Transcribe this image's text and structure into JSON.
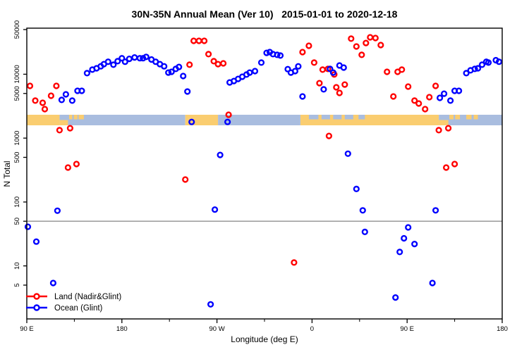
{
  "title": "30N-35N Annual Mean (Ver 10)   2015-01-01 to 2020-12-18",
  "axes": {
    "x_label": "Longitude (deg E)",
    "y_label": "N Total"
  },
  "legend": [
    {
      "label": "Land (Nadir&Glint)",
      "color": "#FF0000"
    },
    {
      "label": "Ocean (Glint)",
      "color": "#0000FF"
    }
  ],
  "colors": {
    "land_series": "#FF0000",
    "ocean_series": "#0000FF",
    "band_land": "#FACD70",
    "band_ocean": "#A9BDDF",
    "ref_line": "#999999",
    "frame": "#000000"
  },
  "chart_data": {
    "type": "scatter",
    "title": "30N-35N Annual Mean (Ver 10)   2015-01-01 to 2020-12-18",
    "xlabel": "Longitude (deg E)",
    "ylabel": "N Total",
    "x_axis": {
      "range_deg": [
        90,
        540
      ],
      "major_ticks": [
        {
          "deg": 90,
          "label": "90 E"
        },
        {
          "deg": 180,
          "label": "180"
        },
        {
          "deg": 270,
          "label": "90 W"
        },
        {
          "deg": 360,
          "label": "0"
        },
        {
          "deg": 450,
          "label": "90 E"
        },
        {
          "deg": 540,
          "label": "180"
        }
      ],
      "minor_ticks": [
        135,
        225,
        315,
        405,
        495
      ]
    },
    "y_axis": {
      "scale": "log",
      "range": [
        1.5,
        50000
      ],
      "ticks": [
        5,
        10,
        50,
        100,
        500,
        1000,
        5000,
        10000,
        50000
      ]
    },
    "reference_line_y": 50,
    "map_band": {
      "value_top": 2400,
      "value_bottom": 1600,
      "segments": [
        {
          "from": 90,
          "to": 121,
          "type": "land"
        },
        {
          "from": 121,
          "to": 240,
          "type": "ocean"
        },
        {
          "from": 240,
          "to": 271,
          "type": "land"
        },
        {
          "from": 271,
          "to": 349,
          "type": "ocean"
        },
        {
          "from": 349,
          "to": 480,
          "type": "land"
        },
        {
          "from": 480,
          "to": 540,
          "type": "ocean"
        }
      ],
      "patches": [
        {
          "from": 121,
          "to": 129,
          "pos": "bottom",
          "type": "land"
        },
        {
          "from": 130,
          "to": 133,
          "pos": "top",
          "type": "land"
        },
        {
          "from": 134.5,
          "to": 138,
          "pos": "top",
          "type": "land"
        },
        {
          "from": 139,
          "to": 144,
          "pos": "top",
          "type": "land"
        },
        {
          "from": 357,
          "to": 366,
          "pos": "top",
          "type": "ocean"
        },
        {
          "from": 369,
          "to": 377,
          "pos": "top",
          "type": "ocean"
        },
        {
          "from": 380,
          "to": 388,
          "pos": "top",
          "type": "ocean"
        },
        {
          "from": 391,
          "to": 399,
          "pos": "top",
          "type": "ocean"
        },
        {
          "from": 404,
          "to": 410,
          "pos": "top",
          "type": "ocean"
        },
        {
          "from": 480,
          "to": 489,
          "pos": "bottom",
          "type": "land"
        },
        {
          "from": 490,
          "to": 494,
          "pos": "top",
          "type": "land"
        },
        {
          "from": 495.5,
          "to": 500,
          "pos": "top",
          "type": "land"
        },
        {
          "from": 506,
          "to": 511,
          "pos": "top",
          "type": "land"
        },
        {
          "from": 513,
          "to": 517,
          "pos": "top",
          "type": "land"
        }
      ]
    },
    "series": [
      {
        "name": "Land (Nadir&Glint)",
        "color": "#FF0000",
        "points": [
          [
            93,
            6570
          ],
          [
            98,
            3860
          ],
          [
            105,
            3570
          ],
          [
            107,
            2840
          ],
          [
            113,
            4600
          ],
          [
            118,
            6570
          ],
          [
            121,
            1330
          ],
          [
            131,
            1430
          ],
          [
            129,
            346
          ],
          [
            137,
            393
          ],
          [
            244,
            14100
          ],
          [
            248,
            33300
          ],
          [
            253,
            33300
          ],
          [
            258,
            33300
          ],
          [
            262,
            20600
          ],
          [
            267,
            16000
          ],
          [
            271,
            14400
          ],
          [
            276,
            14800
          ],
          [
            281,
            2320
          ],
          [
            240,
            225
          ],
          [
            351,
            22200
          ],
          [
            357,
            27900
          ],
          [
            362,
            15200
          ],
          [
            367,
            7260
          ],
          [
            370,
            11800
          ],
          [
            375,
            12100
          ],
          [
            376,
            1080
          ],
          [
            381,
            9900
          ],
          [
            383,
            6240
          ],
          [
            386,
            5100
          ],
          [
            391,
            6900
          ],
          [
            397,
            36000
          ],
          [
            402,
            27200
          ],
          [
            407,
            20100
          ],
          [
            411,
            30800
          ],
          [
            415,
            37800
          ],
          [
            420,
            36900
          ],
          [
            425,
            28600
          ],
          [
            431,
            10900
          ],
          [
            437,
            4490
          ],
          [
            441,
            10900
          ],
          [
            445,
            11800
          ],
          [
            451,
            6400
          ],
          [
            457,
            3860
          ],
          [
            461,
            3480
          ],
          [
            467,
            2840
          ],
          [
            471,
            4380
          ],
          [
            477,
            6570
          ],
          [
            480,
            1330
          ],
          [
            489,
            1430
          ],
          [
            343,
            11.3
          ],
          [
            487,
            346
          ],
          [
            495,
            393
          ]
        ]
      },
      {
        "name": "Ocean (Glint)",
        "color": "#0000FF",
        "points": [
          [
            123,
            3960
          ],
          [
            127,
            4840
          ],
          [
            133,
            3860
          ],
          [
            138,
            5500
          ],
          [
            142,
            5500
          ],
          [
            147,
            10400
          ],
          [
            152,
            11800
          ],
          [
            156,
            12400
          ],
          [
            160,
            13300
          ],
          [
            163,
            14400
          ],
          [
            167,
            15700
          ],
          [
            172,
            14100
          ],
          [
            176,
            16000
          ],
          [
            180,
            17800
          ],
          [
            183,
            15700
          ],
          [
            187,
            17400
          ],
          [
            192,
            18300
          ],
          [
            197,
            17800
          ],
          [
            200,
            17800
          ],
          [
            203,
            18700
          ],
          [
            208,
            17000
          ],
          [
            212,
            15700
          ],
          [
            216,
            14400
          ],
          [
            220,
            13300
          ],
          [
            224,
            10600
          ],
          [
            227,
            10900
          ],
          [
            231,
            12100
          ],
          [
            234,
            13000
          ],
          [
            238,
            9370
          ],
          [
            242,
            5360
          ],
          [
            246,
            1790
          ],
          [
            280,
            1790
          ],
          [
            282,
            7440
          ],
          [
            286,
            7830
          ],
          [
            290,
            8450
          ],
          [
            294,
            9140
          ],
          [
            298,
            9880
          ],
          [
            301,
            10600
          ],
          [
            306,
            11200
          ],
          [
            312,
            15200
          ],
          [
            317,
            21600
          ],
          [
            320,
            22200
          ],
          [
            323,
            20600
          ],
          [
            327,
            20100
          ],
          [
            330,
            19600
          ],
          [
            337,
            12000
          ],
          [
            340,
            10600
          ],
          [
            344,
            11200
          ],
          [
            347,
            13300
          ],
          [
            351,
            4490
          ],
          [
            371,
            5800
          ],
          [
            377,
            12100
          ],
          [
            380,
            10600
          ],
          [
            386,
            13700
          ],
          [
            390,
            12700
          ],
          [
            481,
            4270
          ],
          [
            485,
            4960
          ],
          [
            491,
            3860
          ],
          [
            495,
            5500
          ],
          [
            499,
            5500
          ],
          [
            506,
            10400
          ],
          [
            510,
            11500
          ],
          [
            514,
            12100
          ],
          [
            517,
            12400
          ],
          [
            521,
            14100
          ],
          [
            525,
            15700
          ],
          [
            527,
            15200
          ],
          [
            534,
            16600
          ],
          [
            537,
            15700
          ],
          [
            119,
            73
          ],
          [
            91,
            41
          ],
          [
            99,
            24
          ],
          [
            115,
            5.4
          ],
          [
            273,
            545
          ],
          [
            268,
            76
          ],
          [
            264,
            2.5
          ],
          [
            394,
            570
          ],
          [
            402,
            160
          ],
          [
            408,
            74
          ],
          [
            477,
            74
          ],
          [
            410,
            34
          ],
          [
            451,
            40
          ],
          [
            447,
            27
          ],
          [
            457,
            22
          ],
          [
            443,
            16.5
          ],
          [
            474,
            5.4
          ],
          [
            439,
            3.2
          ]
        ]
      }
    ]
  }
}
